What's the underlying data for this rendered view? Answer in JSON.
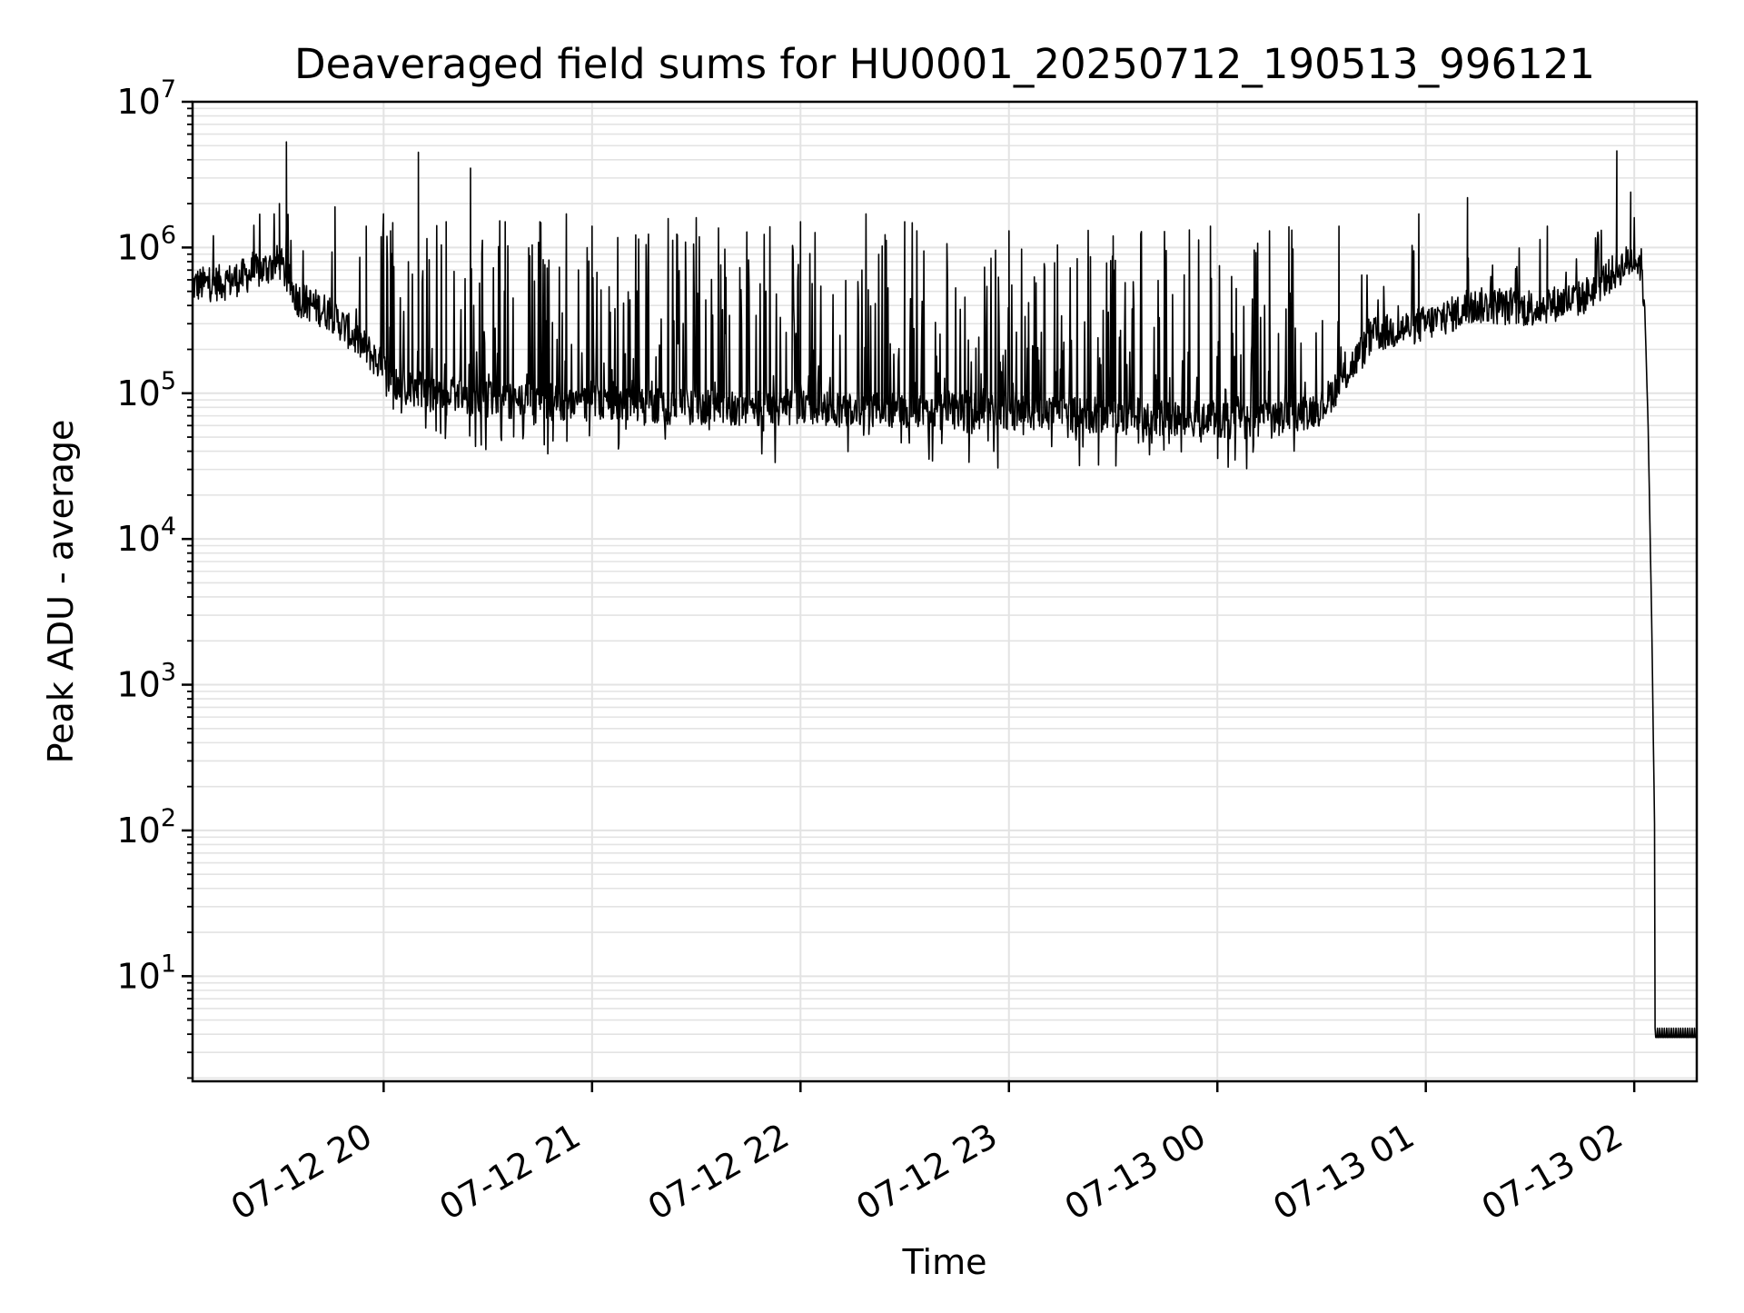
{
  "chart_data": {
    "type": "line",
    "title": "Deaveraged field sums for HU0001_20250712_190513_996121",
    "xlabel": "Time",
    "ylabel": "Peak ADU - average",
    "yscale": "log",
    "xlim": [
      "2025-07-12 19:05",
      "2025-07-13 02:18"
    ],
    "ylim": [
      1.9,
      10000000
    ],
    "grid": true,
    "legend": "none",
    "line_color": "#000000",
    "grid_color": "#e3e3e3",
    "x_ticks": [
      {
        "value": "2025-07-12 20:00",
        "label": "07-12 20"
      },
      {
        "value": "2025-07-12 21:00",
        "label": "07-12 21"
      },
      {
        "value": "2025-07-12 22:00",
        "label": "07-12 22"
      },
      {
        "value": "2025-07-12 23:00",
        "label": "07-12 23"
      },
      {
        "value": "2025-07-13 00:00",
        "label": "07-13 00"
      },
      {
        "value": "2025-07-13 01:00",
        "label": "07-13 01"
      },
      {
        "value": "2025-07-13 02:00",
        "label": "07-13 02"
      }
    ],
    "y_ticks": [
      {
        "value": 10,
        "base": "10",
        "exp": "1"
      },
      {
        "value": 100,
        "base": "10",
        "exp": "2"
      },
      {
        "value": 1000,
        "base": "10",
        "exp": "3"
      },
      {
        "value": 10000,
        "base": "10",
        "exp": "4"
      },
      {
        "value": 100000,
        "base": "10",
        "exp": "5"
      },
      {
        "value": 1000000,
        "base": "10",
        "exp": "6"
      },
      {
        "value": 10000000,
        "base": "10",
        "exp": "7"
      }
    ],
    "series": [
      {
        "baseline": [
          {
            "x": "2025-07-12 19:05",
            "y": 550000
          },
          {
            "x": "2025-07-12 19:15",
            "y": 580000
          },
          {
            "x": "2025-07-12 19:25",
            "y": 700000
          },
          {
            "x": "2025-07-12 19:30",
            "y": 800000
          },
          {
            "x": "2025-07-12 19:35",
            "y": 450000
          },
          {
            "x": "2025-07-12 19:45",
            "y": 350000
          },
          {
            "x": "2025-07-12 19:55",
            "y": 200000
          },
          {
            "x": "2025-07-12 20:05",
            "y": 110000
          },
          {
            "x": "2025-07-12 20:30",
            "y": 90000
          },
          {
            "x": "2025-07-12 21:00",
            "y": 85000
          },
          {
            "x": "2025-07-12 21:30",
            "y": 80000
          },
          {
            "x": "2025-07-12 22:00",
            "y": 80000
          },
          {
            "x": "2025-07-12 22:30",
            "y": 75000
          },
          {
            "x": "2025-07-12 23:00",
            "y": 75000
          },
          {
            "x": "2025-07-12 23:30",
            "y": 70000
          },
          {
            "x": "2025-07-13 00:00",
            "y": 65000
          },
          {
            "x": "2025-07-13 00:15",
            "y": 65000
          },
          {
            "x": "2025-07-13 00:30",
            "y": 80000
          },
          {
            "x": "2025-07-13 00:45",
            "y": 250000
          },
          {
            "x": "2025-07-13 01:00",
            "y": 300000
          },
          {
            "x": "2025-07-13 01:15",
            "y": 400000
          },
          {
            "x": "2025-07-13 01:30",
            "y": 380000
          },
          {
            "x": "2025-07-13 01:45",
            "y": 450000
          },
          {
            "x": "2025-07-13 01:55",
            "y": 700000
          },
          {
            "x": "2025-07-13 02:00",
            "y": 850000
          },
          {
            "x": "2025-07-13 02:02",
            "y": 750000
          },
          {
            "x": "2025-07-13 02:03",
            "y": 400000
          },
          {
            "x": "2025-07-13 02:04",
            "y": 60000
          },
          {
            "x": "2025-07-13 02:05",
            "y": 3000
          },
          {
            "x": "2025-07-13 02:06",
            "y": 60
          },
          {
            "x": "2025-07-13 02:06",
            "y": 3.8
          },
          {
            "x": "2025-07-13 02:18",
            "y": 3.8
          }
        ],
        "spikes": [
          {
            "x": "2025-07-12 19:30",
            "y": 2000000
          },
          {
            "x": "2025-07-12 19:32",
            "y": 5300000
          },
          {
            "x": "2025-07-12 19:46",
            "y": 1900000
          },
          {
            "x": "2025-07-12 19:55",
            "y": 1400000
          },
          {
            "x": "2025-07-12 20:02",
            "y": 1300000
          },
          {
            "x": "2025-07-12 20:10",
            "y": 4500000
          },
          {
            "x": "2025-07-12 20:18",
            "y": 1500000
          },
          {
            "x": "2025-07-12 20:25",
            "y": 3500000
          },
          {
            "x": "2025-07-12 20:35",
            "y": 1500000
          },
          {
            "x": "2025-07-12 20:45",
            "y": 1500000
          },
          {
            "x": "2025-07-12 21:00",
            "y": 1400000
          },
          {
            "x": "2025-07-12 21:30",
            "y": 1600000
          },
          {
            "x": "2025-07-12 22:00",
            "y": 1500000
          },
          {
            "x": "2025-07-12 22:30",
            "y": 1500000
          },
          {
            "x": "2025-07-12 23:00",
            "y": 1300000
          },
          {
            "x": "2025-07-12 23:30",
            "y": 1200000
          },
          {
            "x": "2025-07-12 23:58",
            "y": 1400000
          },
          {
            "x": "2025-07-13 00:15",
            "y": 1300000
          },
          {
            "x": "2025-07-13 00:35",
            "y": 1400000
          },
          {
            "x": "2025-07-13 00:58",
            "y": 1700000
          },
          {
            "x": "2025-07-13 01:12",
            "y": 2200000
          },
          {
            "x": "2025-07-13 01:35",
            "y": 1400000
          },
          {
            "x": "2025-07-13 01:55",
            "y": 4600000
          },
          {
            "x": "2025-07-13 01:59",
            "y": 2400000
          }
        ]
      }
    ]
  }
}
